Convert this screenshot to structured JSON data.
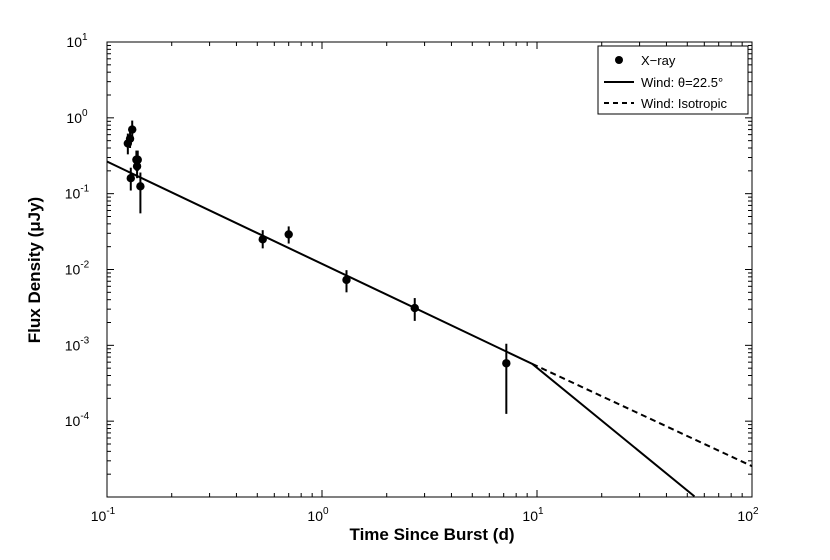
{
  "chart_data": {
    "type": "scatter",
    "xlabel": "Time Since Burst (d)",
    "ylabel": "Flux Density (μJy)",
    "xscale": "log",
    "yscale": "log",
    "xlim": [
      0.1,
      100
    ],
    "ylim": [
      1e-05,
      10
    ],
    "x_ticks": [
      {
        "base": "10",
        "exp": "-1"
      },
      {
        "base": "10",
        "exp": "0"
      },
      {
        "base": "10",
        "exp": "1"
      },
      {
        "base": "10",
        "exp": "2"
      }
    ],
    "y_ticks": [
      {
        "base": "10",
        "exp": "-4"
      },
      {
        "base": "10",
        "exp": "-3"
      },
      {
        "base": "10",
        "exp": "-2"
      },
      {
        "base": "10",
        "exp": "-1"
      },
      {
        "base": "10",
        "exp": "0"
      },
      {
        "base": "10",
        "exp": "1"
      }
    ],
    "grid": false,
    "legend_position": "top-right",
    "legend": [
      {
        "label": "X−ray",
        "style": "marker"
      },
      {
        "label": "Wind: θ=22.5°",
        "style": "solid"
      },
      {
        "label": "Wind: Isotropic",
        "style": "dashed"
      }
    ],
    "series": [
      {
        "name": "X−ray",
        "kind": "points",
        "points": [
          {
            "x": 0.125,
            "y": 0.46,
            "ylo": 0.33,
            "yhi": 0.62
          },
          {
            "x": 0.128,
            "y": 0.53,
            "ylo": 0.4,
            "yhi": 0.68
          },
          {
            "x": 0.131,
            "y": 0.7,
            "ylo": 0.52,
            "yhi": 0.92
          },
          {
            "x": 0.129,
            "y": 0.16,
            "ylo": 0.11,
            "yhi": 0.22
          },
          {
            "x": 0.137,
            "y": 0.28,
            "ylo": 0.2,
            "yhi": 0.37
          },
          {
            "x": 0.138,
            "y": 0.23,
            "ylo": 0.16,
            "yhi": 0.31
          },
          {
            "x": 0.139,
            "y": 0.28,
            "ylo": 0.2,
            "yhi": 0.37
          },
          {
            "x": 0.143,
            "y": 0.125,
            "ylo": 0.055,
            "yhi": 0.19
          },
          {
            "x": 0.53,
            "y": 0.025,
            "ylo": 0.019,
            "yhi": 0.033
          },
          {
            "x": 0.7,
            "y": 0.029,
            "ylo": 0.022,
            "yhi": 0.037
          },
          {
            "x": 1.3,
            "y": 0.0073,
            "ylo": 0.005,
            "yhi": 0.0098
          },
          {
            "x": 2.7,
            "y": 0.0031,
            "ylo": 0.0021,
            "yhi": 0.0042
          },
          {
            "x": 7.2,
            "y": 0.00058,
            "ylo": 0.000125,
            "yhi": 0.00105
          }
        ]
      },
      {
        "name": "Wind: θ=22.5°",
        "kind": "line",
        "style": "solid",
        "x": [
          0.1,
          9.5,
          54
        ],
        "y": [
          0.265,
          0.00057,
          1.02e-05
        ]
      },
      {
        "name": "Wind: Isotropic",
        "kind": "line",
        "style": "dashed",
        "x": [
          9.5,
          100
        ],
        "y": [
          0.00057,
          2.55e-05
        ]
      }
    ]
  }
}
